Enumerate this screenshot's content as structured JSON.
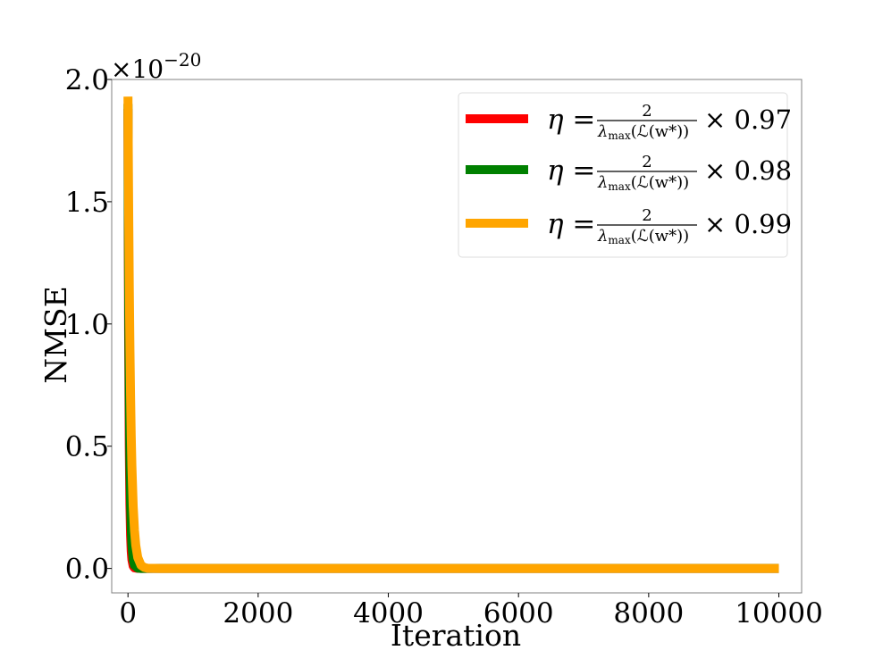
{
  "chart_data": {
    "type": "line",
    "title": "",
    "xlabel": "Iteration",
    "ylabel": "NMSE",
    "y_scale_multiplier": "×10",
    "y_scale_exponent": "−20",
    "xlim": [
      -250,
      10350
    ],
    "ylim": [
      -0.1,
      2.0
    ],
    "x_ticks": [
      0,
      2000,
      4000,
      6000,
      8000,
      10000
    ],
    "x_tick_labels": [
      "0",
      "2000",
      "4000",
      "6000",
      "8000",
      "10000"
    ],
    "y_ticks": [
      0.0,
      0.5,
      1.0,
      1.5,
      2.0
    ],
    "y_tick_labels": [
      "0.0",
      "0.5",
      "1.0",
      "1.5",
      "2.0"
    ],
    "grid": false,
    "legend_position": "top-right",
    "series": [
      {
        "name": "η = 2/λmax(ℒ(w*)) × 0.97",
        "legend": {
          "lhs": "η =",
          "num": "2",
          "den_main": "λ",
          "den_sub": "max",
          "den_arg": "(ℒ(w*))",
          "factor": "× 0.97"
        },
        "color": "#ff0000",
        "x": [
          0,
          5,
          10,
          20,
          30,
          40,
          50,
          60,
          80,
          100,
          150,
          200,
          300,
          500,
          1000,
          2000,
          4000,
          6000,
          8000,
          10000
        ],
        "values": [
          1.88,
          1.35,
          0.97,
          0.5,
          0.26,
          0.135,
          0.07,
          0.036,
          0.0095,
          0.0025,
          0.0002,
          2e-05,
          0,
          0,
          0,
          0,
          0,
          0,
          0,
          0
        ]
      },
      {
        "name": "η = 2/λmax(ℒ(w*)) × 0.98",
        "legend": {
          "lhs": "η =",
          "num": "2",
          "den_main": "λ",
          "den_sub": "max",
          "den_arg": "(ℒ(w*))",
          "factor": "× 0.98"
        },
        "color": "#008000",
        "x": [
          0,
          5,
          10,
          20,
          30,
          40,
          50,
          60,
          80,
          100,
          150,
          200,
          300,
          500,
          1000,
          2000,
          4000,
          6000,
          8000,
          10000
        ],
        "values": [
          1.9,
          1.48,
          1.16,
          0.7,
          0.43,
          0.26,
          0.16,
          0.097,
          0.036,
          0.013,
          0.0012,
          0.0001,
          0,
          0,
          0,
          0,
          0,
          0,
          0,
          0
        ]
      },
      {
        "name": "η = 2/λmax(ℒ(w*)) × 0.99",
        "legend": {
          "lhs": "η =",
          "num": "2",
          "den_main": "λ",
          "den_sub": "max",
          "den_arg": "(ℒ(w*))",
          "factor": "× 0.99"
        },
        "color": "#ffa500",
        "x": [
          0,
          5,
          10,
          20,
          30,
          40,
          50,
          60,
          80,
          100,
          120,
          150,
          200,
          250,
          300,
          500,
          1000,
          2000,
          4000,
          6000,
          8000,
          10000
        ],
        "values": [
          1.93,
          1.7,
          1.49,
          1.16,
          0.9,
          0.7,
          0.54,
          0.42,
          0.255,
          0.155,
          0.094,
          0.045,
          0.013,
          0.004,
          0.001,
          0,
          0,
          0,
          0,
          0,
          0,
          0
        ]
      }
    ]
  }
}
